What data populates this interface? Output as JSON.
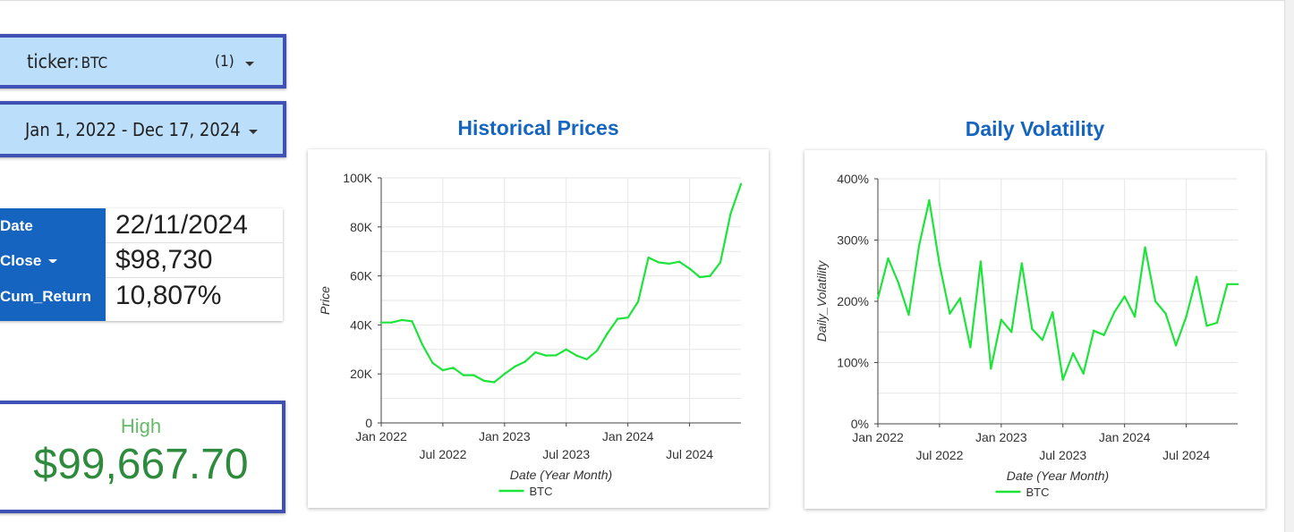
{
  "filters": {
    "ticker": {
      "label": "ticker",
      "value": "BTC",
      "count": "(1)"
    },
    "date_range": {
      "value": "Jan 1, 2022 - Dec 17, 2024"
    }
  },
  "table": {
    "rows": [
      {
        "key": "Date",
        "value": "22/11/2024"
      },
      {
        "key": "Close",
        "value": "$98,730"
      },
      {
        "key": "Cum_Return",
        "value": "10,807%"
      }
    ]
  },
  "kpi": {
    "label": "High",
    "value": "$99,667.70"
  },
  "colors": {
    "accent": "#1565c0",
    "filter_bg": "#bbdefb",
    "filter_border": "#3f51b5",
    "series": "#1de43a",
    "kpi": "#2e8b3e"
  },
  "chart_data": [
    {
      "type": "line",
      "title": "Historical Prices",
      "xlabel": "Date (Year Month)",
      "ylabel": "Price",
      "x_ticks": [
        "Jan 2022",
        "Jul 2022",
        "Jan 2023",
        "Jul 2023",
        "Jan 2024",
        "Jul 2024"
      ],
      "y_ticks": [
        "0",
        "20K",
        "40K",
        "60K",
        "80K",
        "100K"
      ],
      "ylim": [
        0,
        100000
      ],
      "x_range": [
        "2022-01",
        "2024-12"
      ],
      "grid": true,
      "legend": "bottom",
      "series": [
        {
          "name": "BTC",
          "x": [
            "2022-01",
            "2022-02",
            "2022-03",
            "2022-04",
            "2022-05",
            "2022-06",
            "2022-07",
            "2022-08",
            "2022-09",
            "2022-10",
            "2022-11",
            "2022-12",
            "2023-01",
            "2023-02",
            "2023-03",
            "2023-04",
            "2023-05",
            "2023-06",
            "2023-07",
            "2023-08",
            "2023-09",
            "2023-10",
            "2023-11",
            "2023-12",
            "2024-01",
            "2024-02",
            "2024-03",
            "2024-04",
            "2024-05",
            "2024-06",
            "2024-07",
            "2024-08",
            "2024-09",
            "2024-10",
            "2024-11",
            "2024-12"
          ],
          "values": [
            41000,
            41000,
            42000,
            41500,
            32000,
            24500,
            21500,
            22500,
            19500,
            19500,
            17200,
            16600,
            20000,
            23000,
            25000,
            28800,
            27500,
            27600,
            30000,
            27500,
            26000,
            29500,
            36500,
            42500,
            43000,
            49500,
            67500,
            65500,
            65000,
            65800,
            63000,
            59500,
            60000,
            65500,
            85500,
            97500
          ]
        }
      ]
    },
    {
      "type": "line",
      "title": "Daily Volatility",
      "xlabel": "Date (Year Month)",
      "ylabel": "Daily_Volatility",
      "x_ticks": [
        "Jan 2022",
        "Jul 2022",
        "Jan 2023",
        "Jul 2023",
        "Jan 2024",
        "Jul 2024"
      ],
      "y_ticks": [
        "0%",
        "100%",
        "200%",
        "300%",
        "400%"
      ],
      "ylim": [
        0,
        400
      ],
      "x_range": [
        "2022-01",
        "2024-12"
      ],
      "grid": true,
      "legend": "bottom",
      "series": [
        {
          "name": "BTC",
          "x": [
            "2022-01",
            "2022-02",
            "2022-03",
            "2022-04",
            "2022-05",
            "2022-06",
            "2022-07",
            "2022-08",
            "2022-09",
            "2022-10",
            "2022-11",
            "2022-12",
            "2023-01",
            "2023-02",
            "2023-03",
            "2023-04",
            "2023-05",
            "2023-06",
            "2023-07",
            "2023-08",
            "2023-09",
            "2023-10",
            "2023-11",
            "2023-12",
            "2024-01",
            "2024-02",
            "2024-03",
            "2024-04",
            "2024-05",
            "2024-06",
            "2024-07",
            "2024-08",
            "2024-09",
            "2024-10",
            "2024-11",
            "2024-12"
          ],
          "values": [
            205,
            270,
            230,
            178,
            290,
            365,
            260,
            180,
            205,
            125,
            265,
            90,
            170,
            150,
            262,
            155,
            137,
            182,
            72,
            115,
            82,
            152,
            145,
            182,
            208,
            175,
            288,
            200,
            180,
            128,
            175,
            240,
            160,
            165,
            228,
            228
          ]
        }
      ]
    }
  ]
}
